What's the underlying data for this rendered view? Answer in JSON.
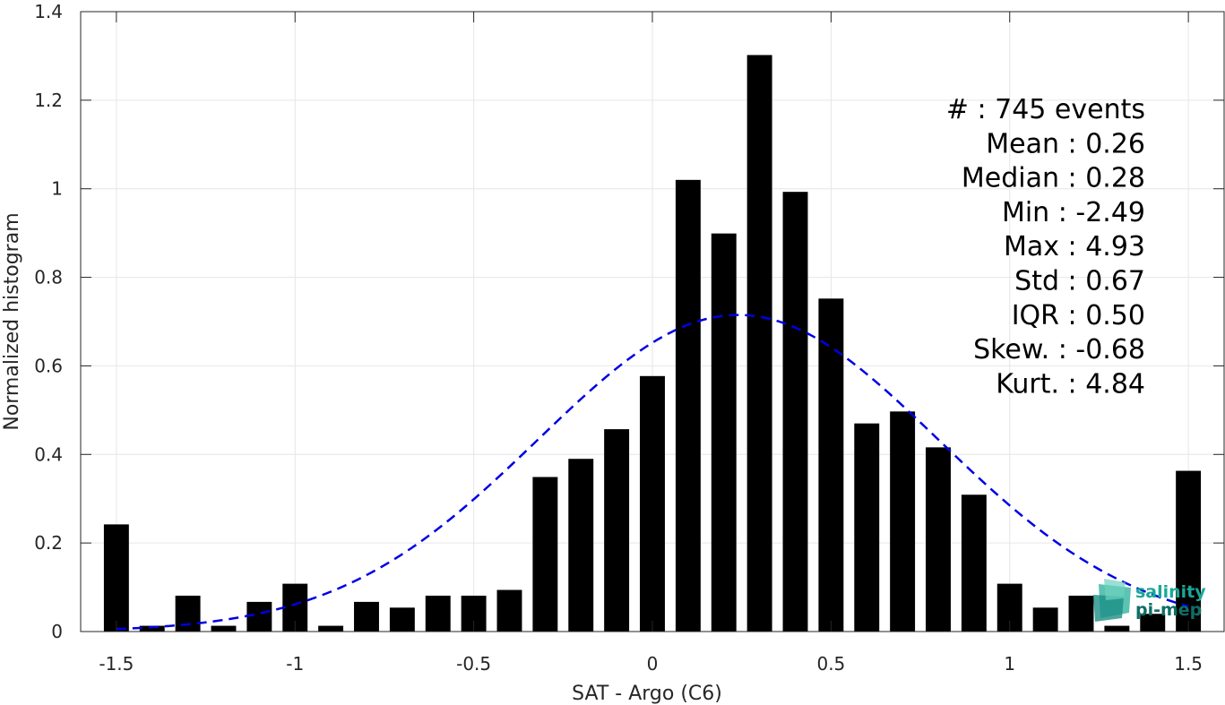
{
  "chart_data": {
    "type": "bar",
    "xlabel": "SAT - Argo (C6)",
    "ylabel": "Normalized histogram",
    "xlim": [
      -1.6,
      1.6
    ],
    "ylim": [
      0,
      1.4
    ],
    "grid": true,
    "x_ticks": [
      -1.5,
      -1,
      -0.5,
      0,
      0.5,
      1,
      1.5
    ],
    "x_tick_labels": [
      "-1.5",
      "-1",
      "-0.5",
      "0",
      "0.5",
      "1",
      "1.5"
    ],
    "y_ticks": [
      0,
      0.2,
      0.4,
      0.6,
      0.8,
      1,
      1.2,
      1.4
    ],
    "y_tick_labels": [
      "0",
      "0.2",
      "0.4",
      "0.6",
      "0.8",
      "1",
      "1.2",
      "1.4"
    ],
    "bin_width": 0.1,
    "bar_centers": [
      -1.5,
      -1.4,
      -1.3,
      -1.2,
      -1.1,
      -1.0,
      -0.9,
      -0.8,
      -0.7,
      -0.6,
      -0.5,
      -0.4,
      -0.3,
      -0.2,
      -0.1,
      0.0,
      0.1,
      0.2,
      0.3,
      0.4,
      0.5,
      0.6,
      0.7,
      0.8,
      0.9,
      1.0,
      1.1,
      1.2,
      1.3,
      1.4,
      1.5
    ],
    "values": [
      0.242,
      0.013,
      0.081,
      0.013,
      0.067,
      0.108,
      0.013,
      0.067,
      0.054,
      0.081,
      0.081,
      0.094,
      0.349,
      0.39,
      0.457,
      0.577,
      1.02,
      0.899,
      1.302,
      0.993,
      0.752,
      0.47,
      0.497,
      0.416,
      0.309,
      0.108,
      0.054,
      0.081,
      0.013,
      0.04,
      0.363
    ],
    "bar_color": "#000000",
    "fit_curve": {
      "type": "gaussian",
      "mean": 0.24,
      "peak": 0.715,
      "sigma": 0.56,
      "x_range": [
        -1.5,
        1.5
      ],
      "color": "#0000e6",
      "style": "dashed"
    },
    "stats": [
      "#  : 745 events",
      "Mean : 0.26",
      "Median : 0.28",
      "Min : -2.49",
      "Max : 4.93",
      "Std : 0.67",
      "IQR : 0.50",
      "Skew. : -0.68",
      "Kurt. : 4.84"
    ]
  },
  "logo": {
    "line1": "salinity",
    "line2": "pi-mep",
    "color": "#1aa898"
  }
}
